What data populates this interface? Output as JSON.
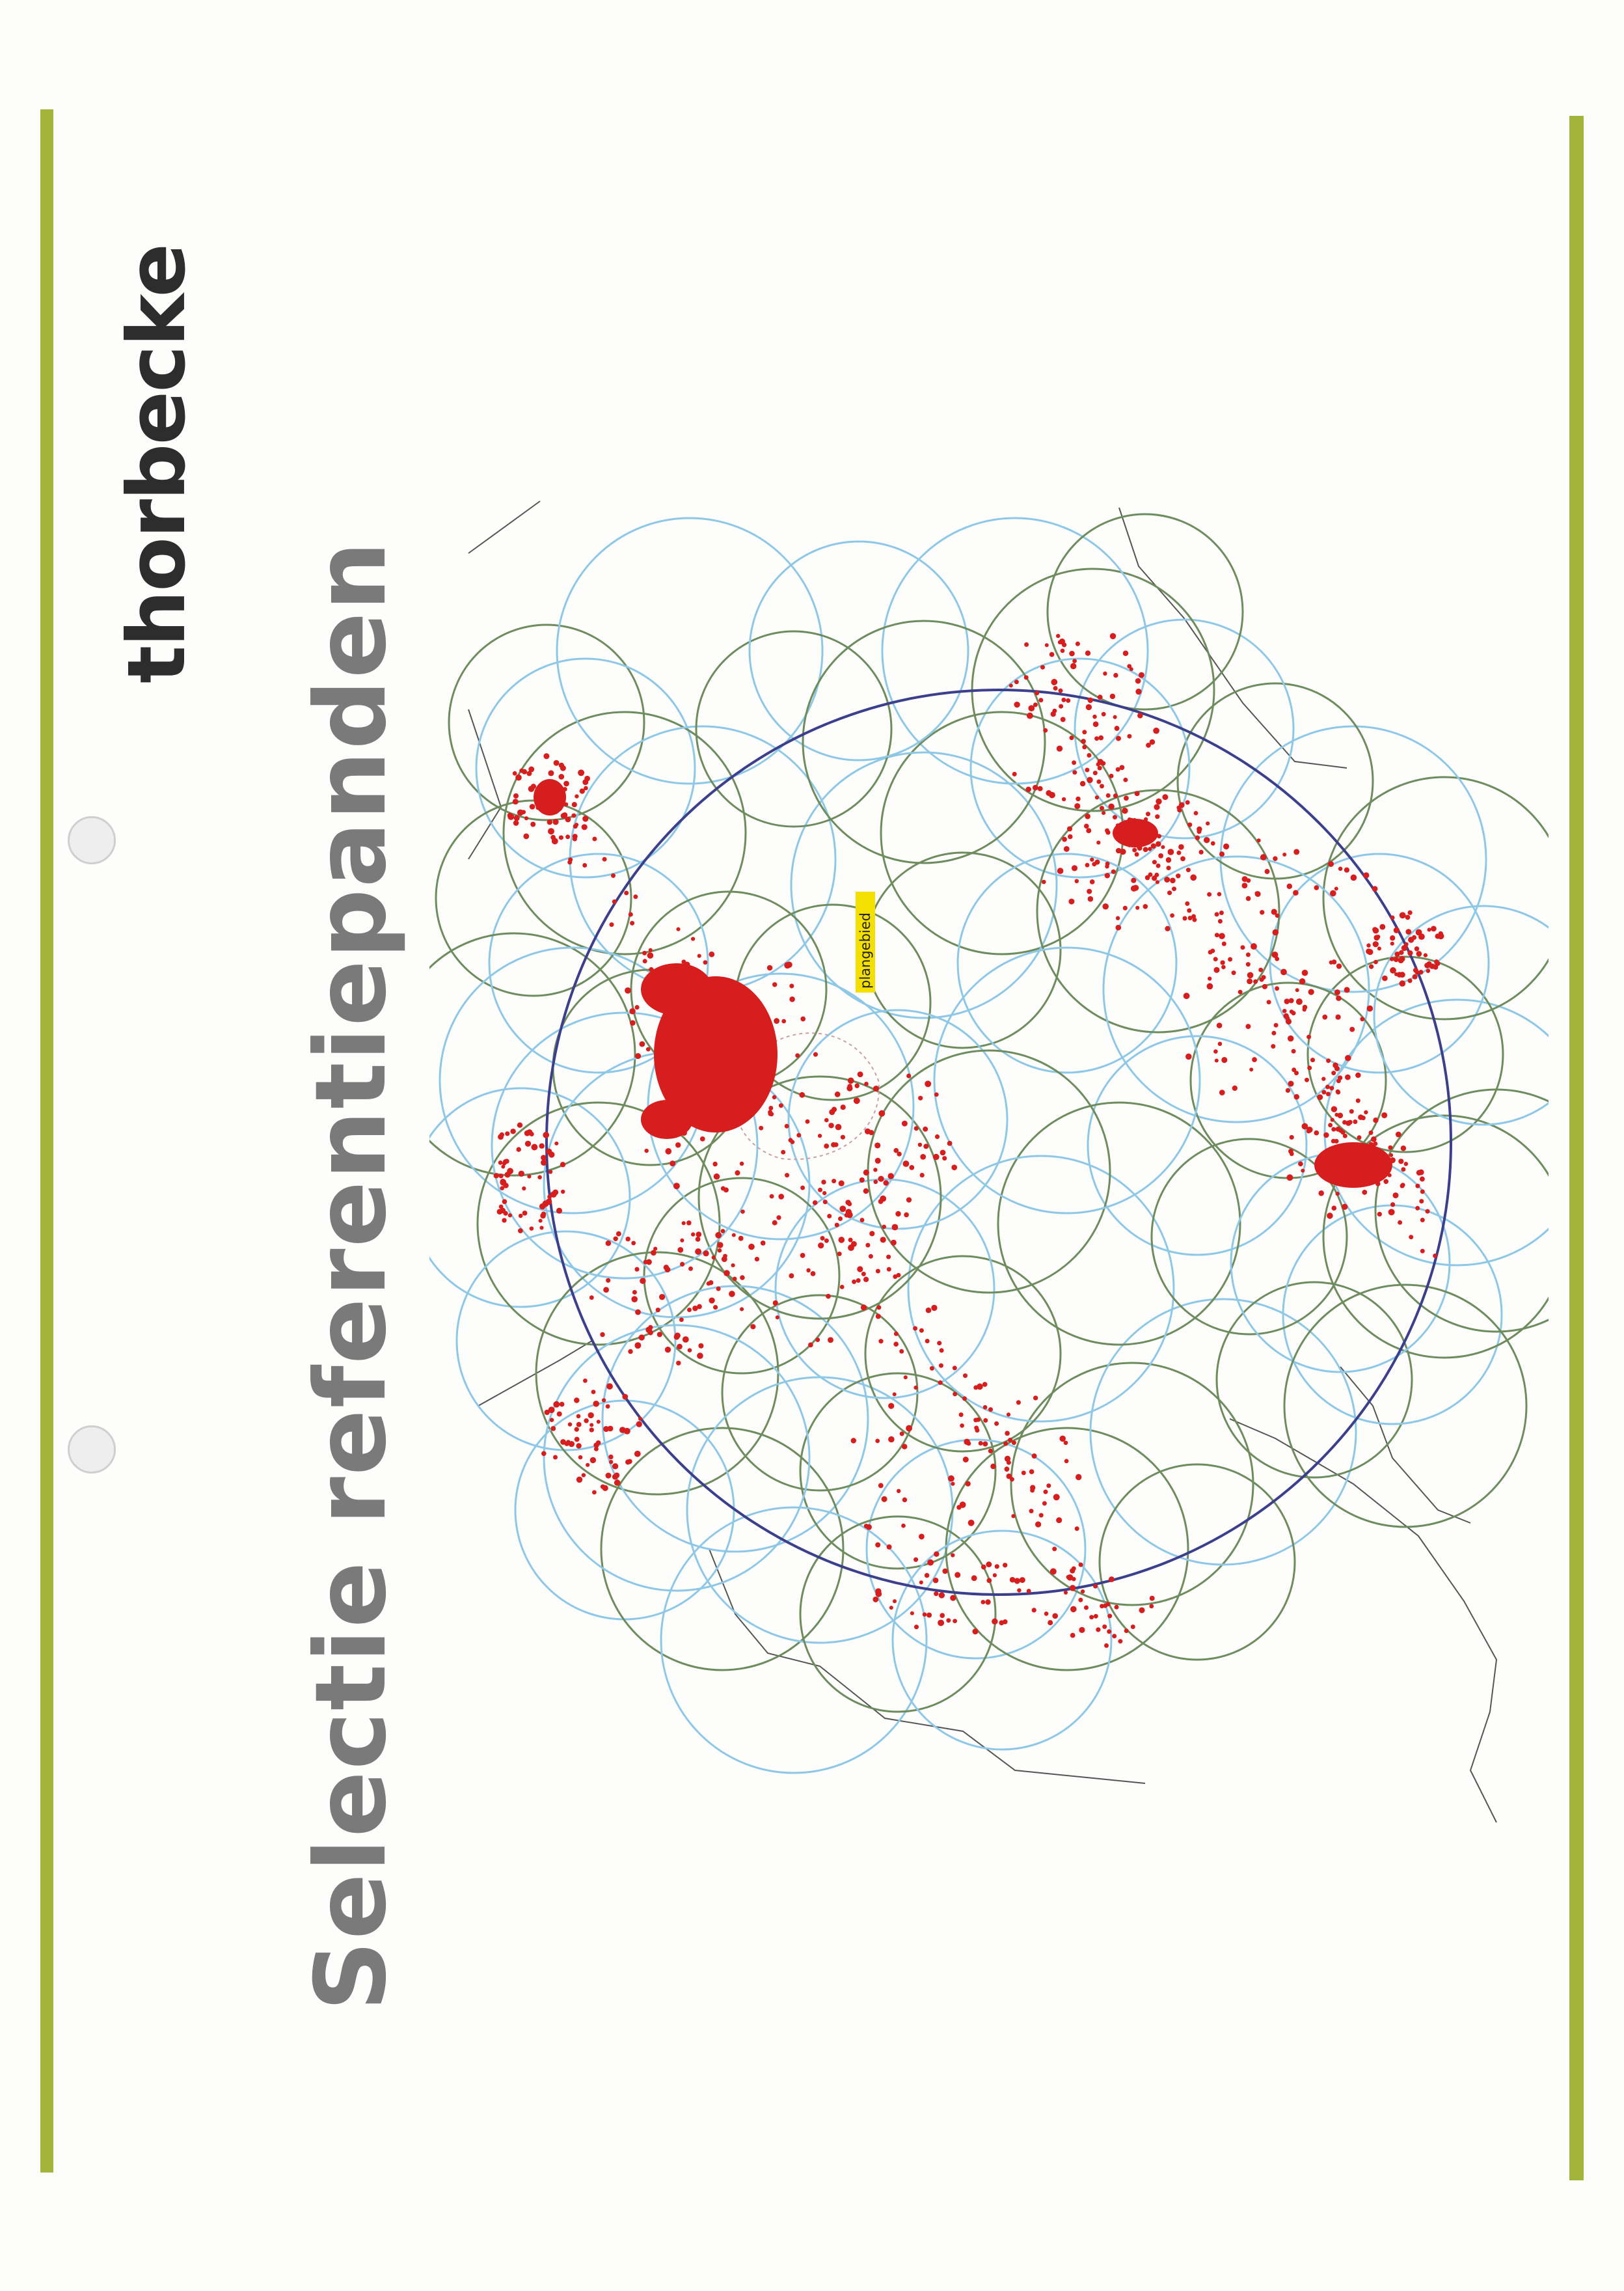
{
  "brand": "thorbecke",
  "title": "Selectie referentiepanden",
  "map": {
    "site_label": "plangebied",
    "colors": {
      "accent_bar": "#a3b43a",
      "catchment_circle": "#3b3f8c",
      "reference_circle_blue": "#8ec8e6",
      "reference_circle_green": "#6e8c5e",
      "reference_points": "#d71e1e",
      "boundaries": "#555555",
      "site_label_bg": "#f3e000"
    }
  }
}
